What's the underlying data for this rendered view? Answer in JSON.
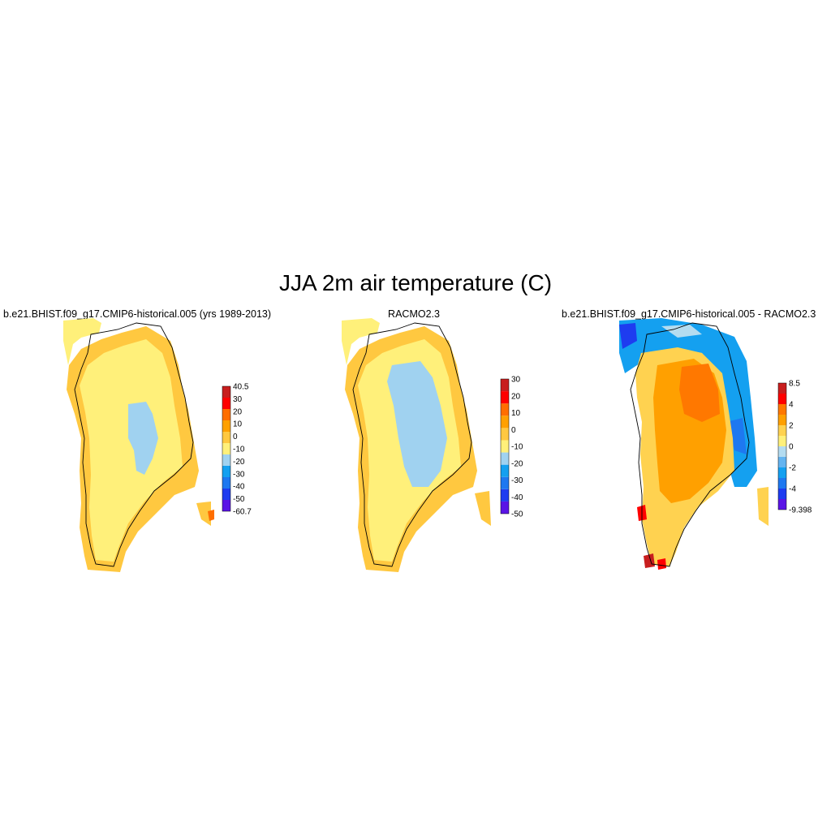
{
  "title": "JJA 2m air temperature (C)",
  "panels": [
    {
      "title": "b.e21.BHIST.f09_g17.CMIP6-historical.005 (yrs 1989-2013)",
      "colorbar": {
        "colors": [
          "#5a14e6",
          "#1e3cf0",
          "#1e78f0",
          "#14a0f0",
          "#a0d2f0",
          "#fff07a",
          "#ffc840",
          "#ffa000",
          "#ff6e00",
          "#ff0000",
          "#c81e1e"
        ],
        "labels": [
          "-60.7",
          "-50",
          "-40",
          "-30",
          "-20",
          "-10",
          "0",
          "10",
          "20",
          "30",
          "40.5"
        ]
      }
    },
    {
      "title": "RACMO2.3",
      "colorbar": {
        "colors": [
          "#5a14e6",
          "#1e3cf0",
          "#1e78f0",
          "#14a0f0",
          "#a0d2f0",
          "#fff07a",
          "#ffc840",
          "#ffa000",
          "#ff6e00",
          "#ff0000",
          "#c81e1e"
        ],
        "labels": [
          "-50",
          "-40",
          "-30",
          "-20",
          "-10",
          "0",
          "10",
          "20",
          "30"
        ]
      }
    },
    {
      "title": "b.e21.BHIST.f09_g17.CMIP6-historical.005 - RACMO2.3",
      "colorbar": {
        "colors": [
          "#5a14e6",
          "#1e3cf0",
          "#1e78f0",
          "#14a0f0",
          "#64b4f0",
          "#b4dcf0",
          "#fff07a",
          "#ffd250",
          "#ffa000",
          "#ff7800",
          "#ff0000",
          "#c81e1e"
        ],
        "labels": [
          "-9.398",
          "-4",
          "-2",
          "0",
          "2",
          "4",
          "8.5"
        ]
      }
    }
  ]
}
